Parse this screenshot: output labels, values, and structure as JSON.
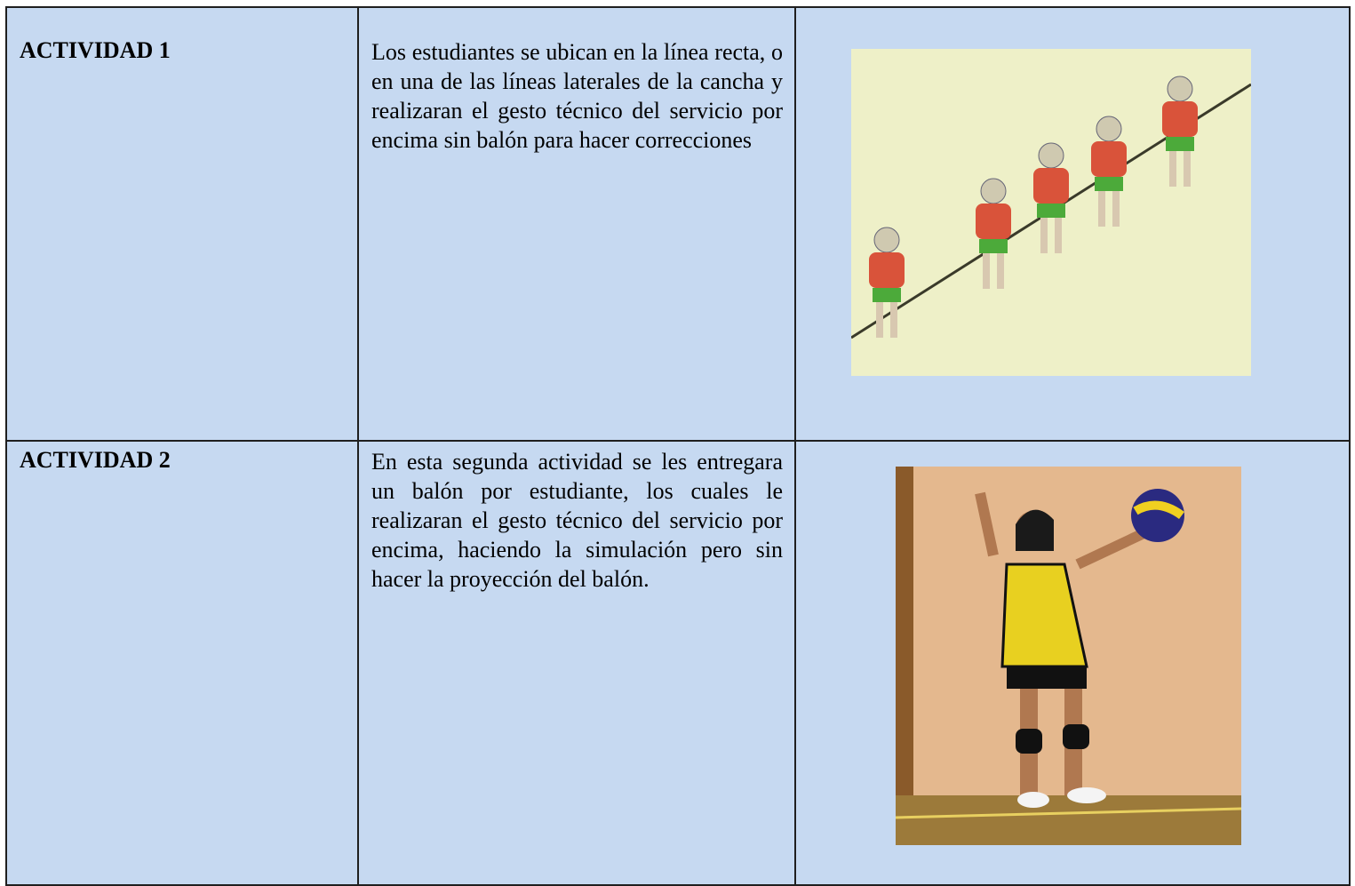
{
  "table": {
    "rows": [
      [
        "ACTIVIDAD 1",
        "Los estudiantes se ubican en la línea recta, o en una de las líneas laterales de la cancha y realizaran el gesto técnico del servicio por encima sin balón para hacer correcciones"
      ],
      [
        "ACTIVIDAD 2",
        "En esta segunda actividad se les entregara un balón por estudiante, los cuales le realizaran el gesto técnico del servicio por encima, haciendo la simulación pero sin hacer la proyección del balón."
      ]
    ]
  }
}
